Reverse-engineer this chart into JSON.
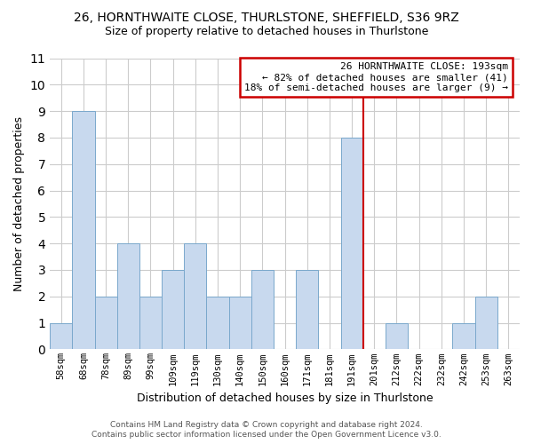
{
  "title": "26, HORNTHWAITE CLOSE, THURLSTONE, SHEFFIELD, S36 9RZ",
  "subtitle": "Size of property relative to detached houses in Thurlstone",
  "xlabel": "Distribution of detached houses by size in Thurlstone",
  "ylabel": "Number of detached properties",
  "bar_labels": [
    "58sqm",
    "68sqm",
    "78sqm",
    "89sqm",
    "99sqm",
    "109sqm",
    "119sqm",
    "130sqm",
    "140sqm",
    "150sqm",
    "160sqm",
    "171sqm",
    "181sqm",
    "191sqm",
    "201sqm",
    "212sqm",
    "222sqm",
    "232sqm",
    "242sqm",
    "253sqm",
    "263sqm"
  ],
  "bar_values": [
    1,
    9,
    2,
    4,
    2,
    3,
    4,
    2,
    2,
    3,
    0,
    3,
    0,
    8,
    0,
    1,
    0,
    0,
    1,
    2,
    0
  ],
  "bar_color": "#c8d9ee",
  "bar_edge_color": "#7aa8cc",
  "vline_index": 13,
  "vline_color": "#cc0000",
  "ylim": [
    0,
    11
  ],
  "yticks": [
    0,
    1,
    2,
    3,
    4,
    5,
    6,
    7,
    8,
    9,
    10,
    11
  ],
  "annotation_title": "26 HORNTHWAITE CLOSE: 193sqm",
  "annotation_line1": "← 82% of detached houses are smaller (41)",
  "annotation_line2": "18% of semi-detached houses are larger (9) →",
  "annotation_box_color": "#ffffff",
  "annotation_box_edge": "#cc0000",
  "footer_line1": "Contains HM Land Registry data © Crown copyright and database right 2024.",
  "footer_line2": "Contains public sector information licensed under the Open Government Licence v3.0.",
  "grid_color": "#cccccc",
  "background_color": "#ffffff"
}
